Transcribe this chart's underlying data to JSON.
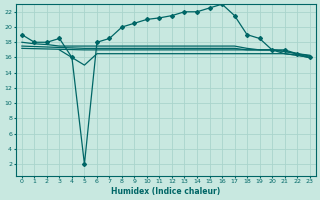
{
  "xlabel": "Humidex (Indice chaleur)",
  "background_color": "#c8e8e0",
  "grid_color": "#aad4cc",
  "line_color": "#006666",
  "xlim": [
    -0.5,
    23.5
  ],
  "ylim": [
    0.5,
    23
  ],
  "xticks": [
    0,
    1,
    2,
    3,
    4,
    5,
    6,
    7,
    8,
    9,
    10,
    11,
    12,
    13,
    14,
    15,
    16,
    17,
    18,
    19,
    20,
    21,
    22,
    23
  ],
  "yticks": [
    2,
    4,
    6,
    8,
    10,
    12,
    14,
    16,
    18,
    20,
    22
  ],
  "main_line_x": [
    0,
    1,
    2,
    3,
    4,
    5,
    6,
    7,
    8,
    9,
    10,
    11,
    12,
    13,
    14,
    15,
    16,
    17,
    18,
    19,
    20,
    21,
    22,
    23
  ],
  "main_line_y": [
    19.0,
    18.0,
    18.0,
    18.5,
    16.0,
    2.0,
    18.0,
    18.5,
    20.0,
    20.5,
    21.0,
    21.2,
    21.5,
    22.0,
    22.0,
    22.5,
    23.0,
    21.5,
    19.0,
    18.5,
    17.0,
    17.0,
    16.5,
    16.0
  ],
  "flat_line1_x": [
    0,
    1,
    2,
    3,
    4,
    5,
    6,
    7,
    8,
    9,
    10,
    11,
    12,
    13,
    14,
    15,
    16,
    17,
    18,
    19,
    20,
    21,
    22,
    23
  ],
  "flat_line1_y": [
    18.0,
    17.8,
    17.7,
    17.5,
    17.5,
    17.5,
    17.5,
    17.5,
    17.5,
    17.5,
    17.5,
    17.5,
    17.5,
    17.5,
    17.5,
    17.5,
    17.5,
    17.5,
    17.2,
    17.0,
    17.0,
    16.8,
    16.5,
    16.3
  ],
  "flat_line2_x": [
    0,
    5,
    6,
    7,
    8,
    9,
    10,
    11,
    12,
    13,
    14,
    15,
    16,
    17,
    18,
    19,
    20,
    21,
    22,
    23
  ],
  "flat_line2_y": [
    17.5,
    17.2,
    17.2,
    17.2,
    17.2,
    17.2,
    17.2,
    17.2,
    17.2,
    17.2,
    17.2,
    17.2,
    17.2,
    17.2,
    17.0,
    17.0,
    17.0,
    16.8,
    16.5,
    16.2
  ],
  "flat_line3_x": [
    0,
    5,
    6,
    7,
    8,
    9,
    10,
    11,
    12,
    13,
    14,
    15,
    16,
    17,
    18,
    19,
    20,
    21,
    22,
    23
  ],
  "flat_line3_y": [
    17.2,
    17.0,
    17.0,
    17.0,
    17.0,
    17.0,
    17.0,
    17.0,
    17.0,
    17.0,
    17.0,
    17.0,
    17.0,
    17.0,
    17.0,
    17.0,
    17.0,
    16.5,
    16.3,
    16.0
  ],
  "spike_line_x": [
    3,
    4,
    5,
    6,
    7,
    8,
    9,
    10,
    11,
    12,
    13,
    14,
    15,
    16,
    17,
    18,
    19,
    20,
    21,
    22,
    23
  ],
  "spike_line_y": [
    17.0,
    16.0,
    15.0,
    16.5,
    16.5,
    16.5,
    16.5,
    16.5,
    16.5,
    16.5,
    16.5,
    16.5,
    16.5,
    16.5,
    16.5,
    16.5,
    16.5,
    16.5,
    16.5,
    16.3,
    16.0
  ]
}
